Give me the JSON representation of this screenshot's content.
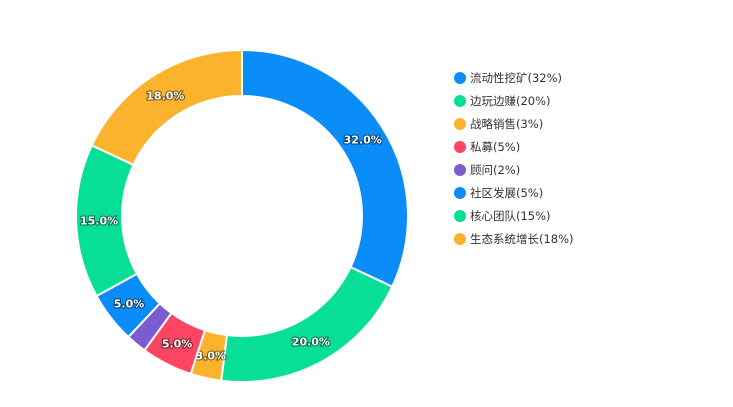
{
  "chart_data": {
    "type": "pie",
    "donut": true,
    "legend_position": "right",
    "slices": [
      {
        "name": "流动性挖矿",
        "value": 32,
        "label": "32.0%",
        "legend": "流动性挖矿(32%)",
        "color": "#0A8DF8"
      },
      {
        "name": "边玩边赚",
        "value": 20,
        "label": "20.0%",
        "legend": "边玩边赚(20%)",
        "color": "#07DF97"
      },
      {
        "name": "战略销售",
        "value": 3,
        "label": "3.0%",
        "legend": "战略销售(3%)",
        "color": "#FBB22D"
      },
      {
        "name": "私募",
        "value": 5,
        "label": "5.0%",
        "legend": "私募(5%)",
        "color": "#FC4563"
      },
      {
        "name": "顾问",
        "value": 2,
        "label": "",
        "legend": "顾问(2%)",
        "color": "#7B5BD0"
      },
      {
        "name": "社区发展",
        "value": 5,
        "label": "5.0%",
        "legend": "社区发展(5%)",
        "color": "#0A8DF8"
      },
      {
        "name": "核心团队",
        "value": 15,
        "label": "15.0%",
        "legend": "核心团队(15%)",
        "color": "#07DF97"
      },
      {
        "name": "生态系统增长",
        "value": 18,
        "label": "18.0%",
        "legend": "生态系统增长(18%)",
        "color": "#FBB22D"
      }
    ]
  }
}
